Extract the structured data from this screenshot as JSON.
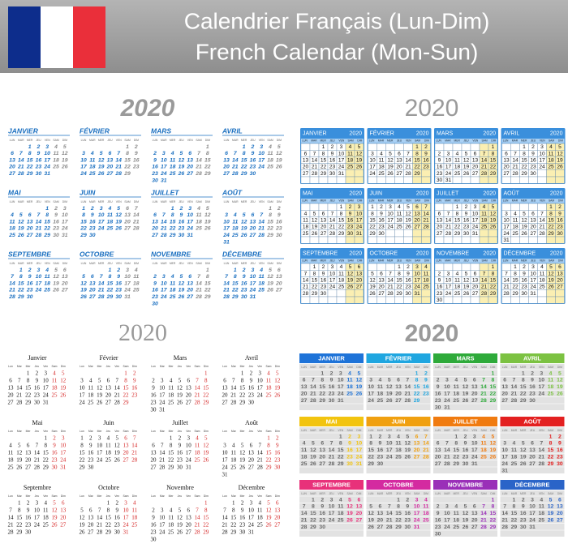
{
  "header": {
    "title_fr": "Calendrier Français (Lun-Dim)",
    "title_en": "French Calendar (Mon-Sun)"
  },
  "year": "2020",
  "calendars": [
    {
      "style": "plain",
      "months": [
        "JANVIER",
        "FÉVRIER",
        "MARS",
        "AVRIL",
        "MAI",
        "JUIN",
        "JUILLET",
        "AOÛT",
        "SEPTEMBRE",
        "OCTOBRE",
        "NOVEMBRE",
        "DÉCEMBRE"
      ],
      "weekdays": [
        "LUN",
        "MAR",
        "MER",
        "JEU",
        "VEN",
        "SAM",
        "DIM"
      ]
    },
    {
      "style": "boxed",
      "months": [
        "JANVIER",
        "FÉVRIER",
        "MARS",
        "AVRIL",
        "MAI",
        "JUIN",
        "JUILLET",
        "AOÛT",
        "SEPTEMBRE",
        "OCTOBRE",
        "NOVEMBRE",
        "DÉCEMBRE"
      ],
      "weekdays": [
        "LUN",
        "MAR",
        "MER",
        "JEU",
        "VEN",
        "SAM",
        "DIM"
      ]
    },
    {
      "style": "classic",
      "months": [
        "Janvier",
        "Février",
        "Mars",
        "Avril",
        "Mai",
        "Juin",
        "Juillet",
        "Août",
        "Septembre",
        "Octobre",
        "Novembre",
        "Décembre"
      ],
      "weekdays": [
        "Lun",
        "Mar",
        "Mer",
        "Jeu",
        "Ven",
        "Sam",
        "Dim"
      ]
    },
    {
      "style": "color",
      "months": [
        "JANVIER",
        "FÉVRIER",
        "MARS",
        "AVRIL",
        "MAI",
        "JUIN",
        "JUILLET",
        "AOÛT",
        "SEPTEMBRE",
        "OCTOBRE",
        "NOVEMBRE",
        "DÉCEMBRE"
      ],
      "weekdays": [
        "LUN",
        "MAR",
        "MER",
        "JEU",
        "VEN",
        "SAM",
        "DIM"
      ],
      "colors": [
        "#1e73d8",
        "#1fa6e0",
        "#2eaa3a",
        "#7cc242",
        "#f2c40f",
        "#f0a010",
        "#f07b10",
        "#e32020",
        "#e8317a",
        "#d42aa0",
        "#9a2fb8",
        "#2a64c8"
      ]
    }
  ],
  "days": [
    [
      1,
      2,
      3,
      4,
      5,
      6,
      7,
      8,
      9,
      10,
      11,
      12,
      13,
      14,
      15,
      16,
      17,
      18,
      19,
      20,
      21,
      22,
      23,
      24,
      25,
      26,
      27,
      28,
      29,
      30,
      31
    ],
    [
      1,
      2,
      3,
      4,
      5,
      6,
      7,
      8,
      9,
      10,
      11,
      12,
      13,
      14,
      15,
      16,
      17,
      18,
      19,
      20,
      21,
      22,
      23,
      24,
      25,
      26,
      27,
      28,
      29
    ],
    [
      1,
      2,
      3,
      4,
      5,
      6,
      7,
      8,
      9,
      10,
      11,
      12,
      13,
      14,
      15,
      16,
      17,
      18,
      19,
      20,
      21,
      22,
      23,
      24,
      25,
      26,
      27,
      28,
      29,
      30,
      31
    ],
    [
      1,
      2,
      3,
      4,
      5,
      6,
      7,
      8,
      9,
      10,
      11,
      12,
      13,
      14,
      15,
      16,
      17,
      18,
      19,
      20,
      21,
      22,
      23,
      24,
      25,
      26,
      27,
      28,
      29,
      30
    ],
    [
      1,
      2,
      3,
      4,
      5,
      6,
      7,
      8,
      9,
      10,
      11,
      12,
      13,
      14,
      15,
      16,
      17,
      18,
      19,
      20,
      21,
      22,
      23,
      24,
      25,
      26,
      27,
      28,
      29,
      30,
      31
    ],
    [
      1,
      2,
      3,
      4,
      5,
      6,
      7,
      8,
      9,
      10,
      11,
      12,
      13,
      14,
      15,
      16,
      17,
      18,
      19,
      20,
      21,
      22,
      23,
      24,
      25,
      26,
      27,
      28,
      29,
      30
    ],
    [
      1,
      2,
      3,
      4,
      5,
      6,
      7,
      8,
      9,
      10,
      11,
      12,
      13,
      14,
      15,
      16,
      17,
      18,
      19,
      20,
      21,
      22,
      23,
      24,
      25,
      26,
      27,
      28,
      29,
      30,
      31
    ],
    [
      1,
      2,
      3,
      4,
      5,
      6,
      7,
      8,
      9,
      10,
      11,
      12,
      13,
      14,
      15,
      16,
      17,
      18,
      19,
      20,
      21,
      22,
      23,
      24,
      25,
      26,
      27,
      28,
      29,
      30,
      31
    ],
    [
      1,
      2,
      3,
      4,
      5,
      6,
      7,
      8,
      9,
      10,
      11,
      12,
      13,
      14,
      15,
      16,
      17,
      18,
      19,
      20,
      21,
      22,
      23,
      24,
      25,
      26,
      27,
      28,
      29,
      30
    ],
    [
      1,
      2,
      3,
      4,
      5,
      6,
      7,
      8,
      9,
      10,
      11,
      12,
      13,
      14,
      15,
      16,
      17,
      18,
      19,
      20,
      21,
      22,
      23,
      24,
      25,
      26,
      27,
      28,
      29,
      30,
      31
    ],
    [
      1,
      2,
      3,
      4,
      5,
      6,
      7,
      8,
      9,
      10,
      11,
      12,
      13,
      14,
      15,
      16,
      17,
      18,
      19,
      20,
      21,
      22,
      23,
      24,
      25,
      26,
      27,
      28,
      29,
      30
    ],
    [
      1,
      2,
      3,
      4,
      5,
      6,
      7,
      8,
      9,
      10,
      11,
      12,
      13,
      14,
      15,
      16,
      17,
      18,
      19,
      20,
      21,
      22,
      23,
      24,
      25,
      26,
      27,
      28,
      29,
      30,
      31
    ]
  ]
}
